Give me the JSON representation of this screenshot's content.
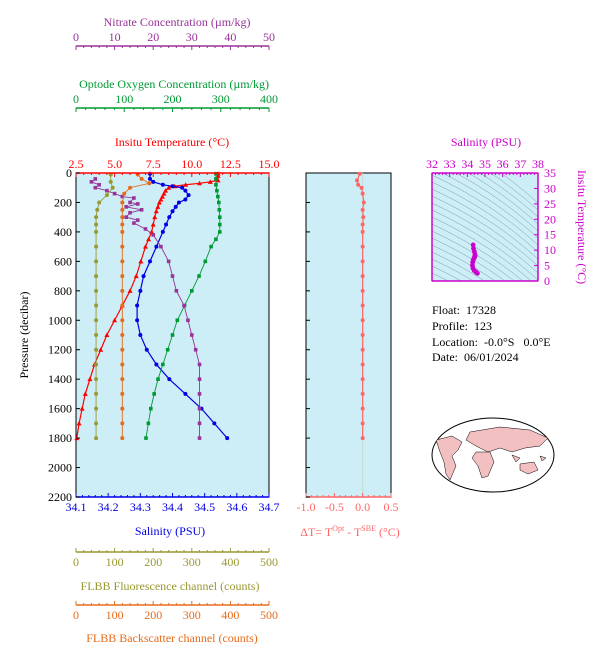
{
  "colors": {
    "plot_bg": "#cdeef6",
    "temperature": "#ff0000",
    "salinity": "#0000e6",
    "oxygen": "#009933",
    "nitrate": "#993399",
    "fluorescence": "#999933",
    "backscatter": "#e66b1a",
    "delta_t": "#ff6666",
    "ts": "#cc00cc",
    "map_land": "#f2c0c0",
    "map_ocean": "#ffffff"
  },
  "axes": {
    "nitrate": {
      "label": "Nitrate Concentration (µm/kg)",
      "ticks": [
        "0",
        "10",
        "20",
        "30",
        "40",
        "50"
      ],
      "range": [
        0,
        50
      ]
    },
    "oxygen": {
      "label": "Optode Oxygen Concentration (µm/kg)",
      "ticks": [
        "0",
        "100",
        "200",
        "300",
        "400"
      ],
      "range": [
        0,
        400
      ]
    },
    "temperature": {
      "label": "Insitu Temperature (°C)",
      "ticks": [
        "2.5",
        "5.0",
        "7.5",
        "10.0",
        "12.5",
        "15.0"
      ],
      "range": [
        2.5,
        15.0
      ]
    },
    "salinity": {
      "label": "Salinity (PSU)",
      "ticks": [
        "34.1",
        "34.2",
        "34.3",
        "34.4",
        "34.5",
        "34.6",
        "34.7"
      ],
      "range": [
        34.1,
        34.7
      ]
    },
    "pressure": {
      "label": "Pressure (decibar)",
      "ticks": [
        "0",
        "200",
        "400",
        "600",
        "800",
        "1000",
        "1200",
        "1400",
        "1600",
        "1800",
        "2000",
        "2200"
      ],
      "range": [
        0,
        2200
      ]
    },
    "fluorescence": {
      "label": "FLBB Fluorescence channel (counts)",
      "ticks": [
        "0",
        "100",
        "200",
        "300",
        "400",
        "500"
      ],
      "range": [
        0,
        500
      ]
    },
    "backscatter": {
      "label": "FLBB Backscatter channel (counts)",
      "ticks": [
        "0",
        "100",
        "200",
        "300",
        "400",
        "500"
      ],
      "range": [
        0,
        500
      ]
    },
    "delta_t": {
      "label_main": "ΔT= T",
      "label_sup1": "Opt",
      "label_mid": " - T",
      "label_sup2": "SBE",
      "label_end": " (°C)",
      "ticks": [
        "-1.0",
        "-0.5",
        "0.0",
        "0.5"
      ],
      "range": [
        -1.0,
        0.5
      ]
    },
    "ts_salinity": {
      "label": "Salinity (PSU)",
      "ticks": [
        "32",
        "33",
        "34",
        "35",
        "36",
        "37",
        "38"
      ],
      "range": [
        32,
        38
      ]
    },
    "ts_temperature": {
      "label": "Insitu Temperature (°C)",
      "ticks": [
        "0",
        "5",
        "10",
        "15",
        "20",
        "25",
        "30",
        "35"
      ],
      "range": [
        0,
        35
      ]
    }
  },
  "info": {
    "float": "Float:  17328",
    "profile": "Profile:  123",
    "location": "Location:  -0.0°S   0.0°E",
    "date": "Date:  06/01/2024"
  },
  "chart_data": {
    "type": "line",
    "x_label": "multiple",
    "y_label": "Pressure (decibar)",
    "ylim": [
      2200,
      0
    ],
    "series": [
      {
        "name": "Insitu Temperature",
        "axis": "temperature",
        "marker": "triangle",
        "points": [
          [
            11.7,
            5
          ],
          [
            11.7,
            20
          ],
          [
            11.7,
            50
          ],
          [
            11.2,
            60
          ],
          [
            10.5,
            70
          ],
          [
            9.6,
            80
          ],
          [
            8.9,
            90
          ],
          [
            8.5,
            100
          ],
          [
            8.3,
            120
          ],
          [
            8.2,
            140
          ],
          [
            8.1,
            160
          ],
          [
            8.0,
            180
          ],
          [
            7.9,
            200
          ],
          [
            7.8,
            230
          ],
          [
            7.7,
            260
          ],
          [
            7.6,
            300
          ],
          [
            7.5,
            350
          ],
          [
            7.4,
            400
          ],
          [
            7.2,
            450
          ],
          [
            7.0,
            500
          ],
          [
            6.7,
            600
          ],
          [
            6.4,
            700
          ],
          [
            6.0,
            800
          ],
          [
            5.5,
            900
          ],
          [
            5.0,
            1000
          ],
          [
            4.5,
            1100
          ],
          [
            4.1,
            1200
          ],
          [
            3.7,
            1300
          ],
          [
            3.4,
            1400
          ],
          [
            3.1,
            1500
          ],
          [
            2.9,
            1600
          ],
          [
            2.7,
            1700
          ],
          [
            2.55,
            1800
          ]
        ]
      },
      {
        "name": "Salinity",
        "axis": "salinity",
        "marker": "circle",
        "points": [
          [
            34.33,
            5
          ],
          [
            34.33,
            40
          ],
          [
            34.34,
            60
          ],
          [
            34.37,
            80
          ],
          [
            34.4,
            90
          ],
          [
            34.43,
            100
          ],
          [
            34.44,
            120
          ],
          [
            34.45,
            150
          ],
          [
            34.44,
            180
          ],
          [
            34.42,
            200
          ],
          [
            34.41,
            230
          ],
          [
            34.4,
            260
          ],
          [
            34.39,
            300
          ],
          [
            34.38,
            350
          ],
          [
            34.37,
            400
          ],
          [
            34.35,
            500
          ],
          [
            34.33,
            600
          ],
          [
            34.31,
            700
          ],
          [
            34.3,
            800
          ],
          [
            34.29,
            900
          ],
          [
            34.29,
            1000
          ],
          [
            34.3,
            1100
          ],
          [
            34.32,
            1200
          ],
          [
            34.35,
            1300
          ],
          [
            34.39,
            1400
          ],
          [
            34.44,
            1500
          ],
          [
            34.49,
            1600
          ],
          [
            34.53,
            1700
          ],
          [
            34.57,
            1800
          ]
        ]
      },
      {
        "name": "Optode Oxygen Concentration",
        "axis": "oxygen",
        "marker": "square",
        "points": [
          [
            290,
            5
          ],
          [
            290,
            40
          ],
          [
            290,
            80
          ],
          [
            292,
            120
          ],
          [
            294,
            160
          ],
          [
            296,
            200
          ],
          [
            297,
            250
          ],
          [
            298,
            300
          ],
          [
            298,
            350
          ],
          [
            298,
            400
          ],
          [
            290,
            450
          ],
          [
            280,
            500
          ],
          [
            268,
            600
          ],
          [
            255,
            700
          ],
          [
            240,
            800
          ],
          [
            225,
            900
          ],
          [
            210,
            1000
          ],
          [
            200,
            1100
          ],
          [
            190,
            1200
          ],
          [
            180,
            1300
          ],
          [
            170,
            1400
          ],
          [
            162,
            1500
          ],
          [
            155,
            1600
          ],
          [
            150,
            1700
          ],
          [
            145,
            1800
          ]
        ]
      },
      {
        "name": "Nitrate Concentration",
        "axis": "nitrate",
        "marker": "square",
        "points": [
          [
            5,
            40
          ],
          [
            4,
            60
          ],
          [
            6,
            80
          ],
          [
            5,
            100
          ],
          [
            8,
            120
          ],
          [
            10,
            140
          ],
          [
            12,
            160
          ],
          [
            15,
            170
          ],
          [
            14,
            200
          ],
          [
            16,
            210
          ],
          [
            13,
            230
          ],
          [
            17,
            250
          ],
          [
            14,
            270
          ],
          [
            13,
            300
          ],
          [
            16,
            320
          ],
          [
            15,
            340
          ],
          [
            18,
            380
          ],
          [
            20,
            420
          ],
          [
            22,
            500
          ],
          [
            24,
            600
          ],
          [
            25,
            700
          ],
          [
            26,
            800
          ],
          [
            28,
            900
          ],
          [
            29,
            1000
          ],
          [
            30,
            1100
          ],
          [
            31,
            1200
          ],
          [
            32,
            1300
          ],
          [
            32,
            1400
          ],
          [
            32,
            1500
          ],
          [
            32,
            1600
          ],
          [
            32,
            1700
          ],
          [
            32,
            1800
          ]
        ]
      },
      {
        "name": "FLBB Fluorescence channel",
        "axis": "fluorescence",
        "marker": "circle",
        "points": [
          [
            90,
            10
          ],
          [
            90,
            60
          ],
          [
            95,
            100
          ],
          [
            80,
            150
          ],
          [
            60,
            200
          ],
          [
            55,
            250
          ],
          [
            52,
            300
          ],
          [
            52,
            350
          ],
          [
            52,
            400
          ],
          [
            52,
            500
          ],
          [
            52,
            600
          ],
          [
            52,
            700
          ],
          [
            52,
            800
          ],
          [
            52,
            900
          ],
          [
            52,
            1000
          ],
          [
            52,
            1100
          ],
          [
            52,
            1200
          ],
          [
            52,
            1300
          ],
          [
            52,
            1400
          ],
          [
            52,
            1500
          ],
          [
            52,
            1600
          ],
          [
            52,
            1700
          ],
          [
            52,
            1800
          ]
        ]
      },
      {
        "name": "FLBB Backscatter channel",
        "axis": "backscatter",
        "marker": "circle",
        "points": [
          [
            160,
            10
          ],
          [
            170,
            40
          ],
          [
            190,
            70
          ],
          [
            140,
            100
          ],
          [
            125,
            140
          ],
          [
            120,
            200
          ],
          [
            120,
            250
          ],
          [
            120,
            300
          ],
          [
            120,
            350
          ],
          [
            120,
            400
          ],
          [
            120,
            500
          ],
          [
            120,
            600
          ],
          [
            120,
            700
          ],
          [
            120,
            800
          ],
          [
            120,
            900
          ],
          [
            120,
            1000
          ],
          [
            120,
            1100
          ],
          [
            120,
            1200
          ],
          [
            120,
            1300
          ],
          [
            120,
            1400
          ],
          [
            120,
            1500
          ],
          [
            120,
            1600
          ],
          [
            120,
            1700
          ],
          [
            120,
            1800
          ]
        ]
      },
      {
        "name": "ΔT",
        "axis": "delta_t",
        "marker": "circle",
        "points": [
          [
            -0.05,
            5
          ],
          [
            -0.1,
            50
          ],
          [
            -0.08,
            80
          ],
          [
            -0.02,
            100
          ],
          [
            0.0,
            140
          ],
          [
            0.02,
            200
          ],
          [
            0.0,
            250
          ],
          [
            0.01,
            300
          ],
          [
            0.0,
            350
          ],
          [
            0.0,
            400
          ],
          [
            0.0,
            500
          ],
          [
            0.0,
            600
          ],
          [
            0.0,
            700
          ],
          [
            0.0,
            800
          ],
          [
            0.0,
            900
          ],
          [
            0.0,
            1000
          ],
          [
            0.0,
            1100
          ],
          [
            0.0,
            1200
          ],
          [
            0.0,
            1300
          ],
          [
            0.0,
            1400
          ],
          [
            0.0,
            1500
          ],
          [
            0.0,
            1600
          ],
          [
            0.0,
            1700
          ],
          [
            0.0,
            1800
          ]
        ]
      },
      {
        "name": "T-S",
        "axis": "ts",
        "marker": "circle",
        "points": [
          [
            34.33,
            11.7
          ],
          [
            34.35,
            10.5
          ],
          [
            34.4,
            9.5
          ],
          [
            34.43,
            8.6
          ],
          [
            34.44,
            8.2
          ],
          [
            34.42,
            7.9
          ],
          [
            34.4,
            7.6
          ],
          [
            34.37,
            7.3
          ],
          [
            34.33,
            6.7
          ],
          [
            34.3,
            6.0
          ],
          [
            34.29,
            5.0
          ],
          [
            34.32,
            4.1
          ],
          [
            34.39,
            3.4
          ],
          [
            34.49,
            2.9
          ],
          [
            34.57,
            2.5
          ]
        ]
      }
    ]
  }
}
